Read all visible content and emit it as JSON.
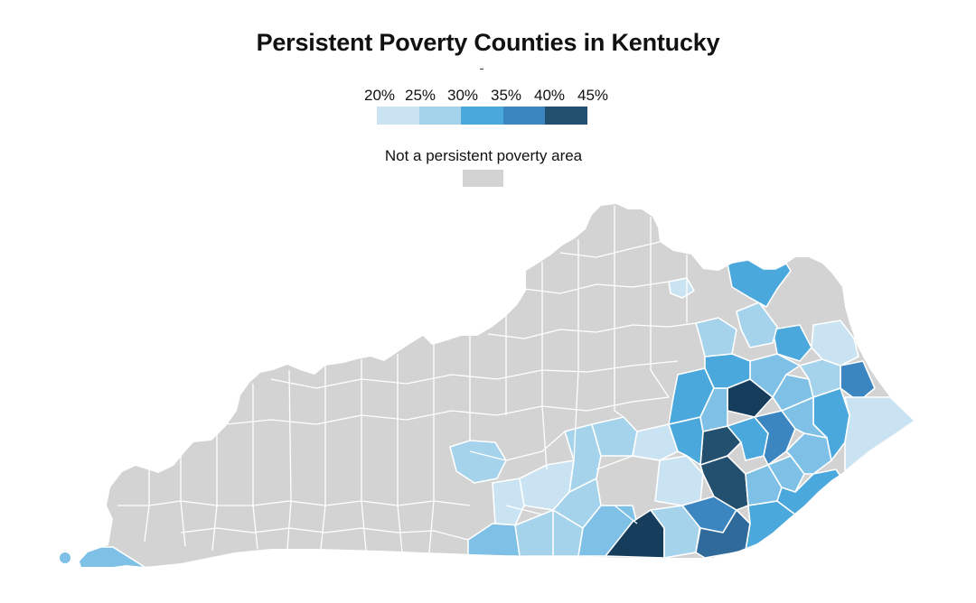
{
  "title": "Persistent Poverty Counties in Kentucky",
  "legend": {
    "labels": [
      "20%",
      "25%",
      "30%",
      "35%",
      "40%",
      "45%"
    ],
    "colors": [
      "#c9e3f2",
      "#a6d3ec",
      "#4aa8dc",
      "#3b86c0",
      "#23506f"
    ],
    "non_poverty_label": "Not a persistent poverty area",
    "non_poverty_color": "#d3d3d3"
  },
  "map": {
    "state_color": "#d3d3d3",
    "border_color": "#ffffff"
  }
}
